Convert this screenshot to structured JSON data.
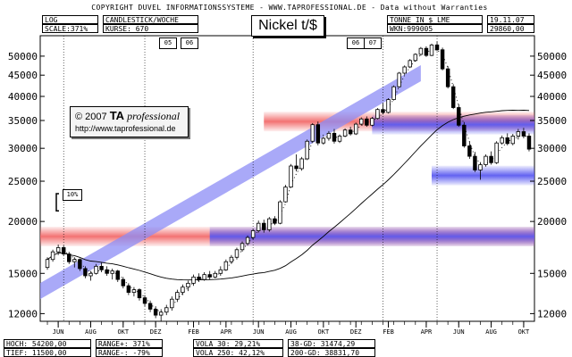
{
  "header": {
    "copyright": "COPYRIGHT DUVEL INFORMATIONSSYSTEME - WWW.TAPROFESSIONAL.DE - Data without Warranties",
    "log": "LOG",
    "scale": "SCALE:371%",
    "chart_type": "CANDLESTICK/WOCHE",
    "kurse": "KURSE: 670",
    "unit": "TONNE IN $ LME",
    "wkn": "WKN:999005",
    "date": "19.11.07",
    "last": "29860,00",
    "title": "Nickel t/$"
  },
  "logo": {
    "prefix": "© 2007",
    "ta": "TA",
    "professional": "professional",
    "url": "http://www.taprofessional.de"
  },
  "year_markers": [
    "05",
    "06",
    "06",
    "07"
  ],
  "bracket_label": "10%",
  "stats": {
    "hoch": "HOCH: 54200,00",
    "tief": "TIEF: 11500,00",
    "range_plus": "RANGE+: 371%",
    "range_minus": "RANGE-: -79%",
    "vola30": "VOLA  30: 29,21%",
    "vola250": "VOLA 250: 42,12%",
    "gd38": "38-GD: 31474,29",
    "gd200": "200-GD: 38831,70"
  },
  "colors": {
    "trend_band": "#8c8cf5",
    "support_red": "#f26b6b",
    "support_blue": "#5a5af0"
  },
  "chart_data": {
    "type": "candlestick",
    "title": "Nickel t/$",
    "ylabel": "TONNE IN $ LME",
    "y_scale": "log",
    "ylim": [
      11500,
      56000
    ],
    "y_ticks": [
      12000,
      15000,
      20000,
      25000,
      30000,
      35000,
      40000,
      45000,
      50000
    ],
    "y_tick_labels": [
      "12000",
      "15000",
      "20000",
      "25000",
      "30000",
      "35000",
      "40000",
      "45000",
      "50000"
    ],
    "x_ticks": [
      "JUN",
      "AUG",
      "OKT",
      "DEZ",
      "FEB",
      "APR",
      "JUN",
      "AUG",
      "OKT",
      "DEZ",
      "FEB",
      "APR",
      "JUN",
      "AUG",
      "OKT"
    ],
    "period": "weekly",
    "candles": [
      [
        15500,
        16400,
        15300,
        16200
      ],
      [
        16200,
        17100,
        16000,
        16900
      ],
      [
        16900,
        17600,
        16600,
        17300
      ],
      [
        17300,
        17500,
        16500,
        16700
      ],
      [
        16700,
        16900,
        15800,
        16000
      ],
      [
        16000,
        16400,
        15500,
        16200
      ],
      [
        16200,
        16300,
        15200,
        15400
      ],
      [
        15400,
        15600,
        14600,
        14800
      ],
      [
        14800,
        15200,
        14400,
        15000
      ],
      [
        15000,
        15800,
        14900,
        15600
      ],
      [
        15600,
        15900,
        15100,
        15300
      ],
      [
        15300,
        15600,
        14800,
        15000
      ],
      [
        15000,
        15400,
        14500,
        15200
      ],
      [
        15200,
        15300,
        14300,
        14500
      ],
      [
        14500,
        14700,
        13800,
        14000
      ],
      [
        14000,
        14200,
        13300,
        13500
      ],
      [
        13500,
        13900,
        13200,
        13700
      ],
      [
        13700,
        13800,
        12900,
        13100
      ],
      [
        13100,
        13300,
        12500,
        12700
      ],
      [
        12700,
        12900,
        12100,
        12300
      ],
      [
        12300,
        12500,
        11700,
        11900
      ],
      [
        11900,
        12300,
        11500,
        12100
      ],
      [
        12100,
        12600,
        11900,
        12400
      ],
      [
        12400,
        13200,
        12200,
        13000
      ],
      [
        13000,
        13700,
        12800,
        13500
      ],
      [
        13500,
        14100,
        13300,
        13900
      ],
      [
        13900,
        14400,
        13600,
        14200
      ],
      [
        14200,
        14900,
        14000,
        14700
      ],
      [
        14700,
        15000,
        14300,
        14500
      ],
      [
        14500,
        15100,
        14400,
        14900
      ],
      [
        14900,
        15200,
        14500,
        14700
      ],
      [
        14700,
        15200,
        14600,
        15000
      ],
      [
        15000,
        15600,
        14800,
        15300
      ],
      [
        15300,
        16200,
        15200,
        16000
      ],
      [
        16000,
        16600,
        15800,
        16400
      ],
      [
        16400,
        17300,
        16200,
        17100
      ],
      [
        17100,
        17900,
        16900,
        17700
      ],
      [
        17700,
        18500,
        17500,
        18300
      ],
      [
        18300,
        19200,
        18100,
        19000
      ],
      [
        19000,
        20100,
        18800,
        19800
      ],
      [
        19800,
        20200,
        18800,
        19100
      ],
      [
        19100,
        20500,
        18900,
        20300
      ],
      [
        20300,
        20600,
        19600,
        19800
      ],
      [
        19800,
        22500,
        19700,
        22300
      ],
      [
        22300,
        24500,
        22200,
        24200
      ],
      [
        24200,
        27500,
        24100,
        27200
      ],
      [
        27200,
        29000,
        26400,
        26800
      ],
      [
        26800,
        28600,
        26500,
        28300
      ],
      [
        28300,
        31500,
        28100,
        31200
      ],
      [
        31200,
        34500,
        31000,
        34200
      ],
      [
        34200,
        34800,
        30500,
        30900
      ],
      [
        30900,
        32000,
        30600,
        31700
      ],
      [
        31700,
        33000,
        31300,
        32600
      ],
      [
        32600,
        33400,
        30800,
        31200
      ],
      [
        31200,
        32400,
        30900,
        32100
      ],
      [
        32100,
        33500,
        31900,
        33200
      ],
      [
        33200,
        33800,
        32200,
        32500
      ],
      [
        32500,
        34600,
        32300,
        34300
      ],
      [
        34300,
        35600,
        34100,
        35300
      ],
      [
        35300,
        35800,
        33800,
        34100
      ],
      [
        34100,
        35700,
        33900,
        35400
      ],
      [
        35400,
        37500,
        35200,
        37200
      ],
      [
        37200,
        38500,
        36200,
        36600
      ],
      [
        36600,
        39600,
        36400,
        39300
      ],
      [
        39300,
        42500,
        39100,
        42200
      ],
      [
        42200,
        45800,
        42000,
        45500
      ],
      [
        45500,
        47500,
        45100,
        47100
      ],
      [
        47100,
        49200,
        46800,
        48800
      ],
      [
        48800,
        50800,
        48500,
        50500
      ],
      [
        50500,
        52600,
        50100,
        52200
      ],
      [
        52200,
        52800,
        49800,
        50200
      ],
      [
        50200,
        53600,
        50000,
        53200
      ],
      [
        53200,
        54200,
        51400,
        51800
      ],
      [
        51800,
        52400,
        46200,
        46600
      ],
      [
        46600,
        47300,
        41800,
        42200
      ],
      [
        42200,
        42800,
        37300,
        37600
      ],
      [
        37600,
        38300,
        33800,
        34100
      ],
      [
        34100,
        34700,
        30100,
        30400
      ],
      [
        30400,
        31200,
        28300,
        28700
      ],
      [
        28700,
        29400,
        26300,
        26600
      ],
      [
        26600,
        27800,
        25200,
        27400
      ],
      [
        27400,
        29000,
        27100,
        28700
      ],
      [
        28700,
        29500,
        27400,
        27700
      ],
      [
        27700,
        31200,
        27500,
        30900
      ],
      [
        30900,
        32200,
        30600,
        31800
      ],
      [
        31800,
        32600,
        30500,
        30800
      ],
      [
        30800,
        32500,
        30500,
        32100
      ],
      [
        32100,
        33400,
        31500,
        32900
      ],
      [
        32900,
        33600,
        31700,
        32100
      ],
      [
        32100,
        32600,
        29500,
        29860
      ]
    ],
    "support_zones": [
      {
        "color": "red",
        "center": 34800,
        "from_week": 40
      },
      {
        "color": "red",
        "center": 18400,
        "from_week": 0
      },
      {
        "color": "blue",
        "center": 18400,
        "from_week": 30
      },
      {
        "color": "blue",
        "center": 34200,
        "from_week": 60
      },
      {
        "color": "blue",
        "center": 25800,
        "from_week": 71
      }
    ],
    "trendline": {
      "start_value": 13600,
      "end_value": 45500
    }
  }
}
